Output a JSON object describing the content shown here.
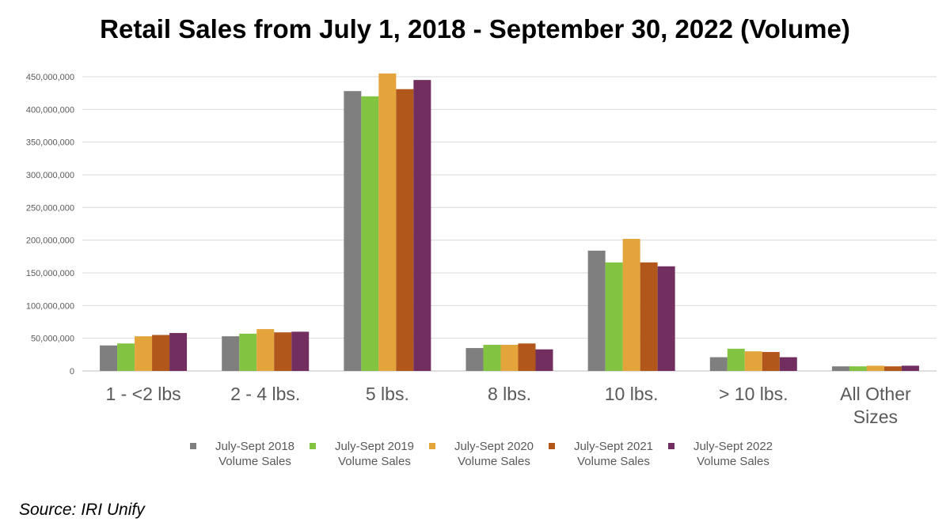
{
  "chart_data": {
    "type": "bar",
    "title": "Retail Sales from July 1, 2018 - September 30, 2022 (Volume)",
    "xlabel": "",
    "ylabel": "",
    "categories": [
      "1 - <2 lbs",
      "2 - 4 lbs.",
      "5 lbs.",
      "8 lbs.",
      "10 lbs.",
      "> 10 lbs.",
      "All Other Sizes"
    ],
    "y_ticks": [
      "0",
      "50,000,000",
      "100,000,000",
      "150,000,000",
      "200,000,000",
      "250,000,000",
      "300,000,000",
      "350,000,000",
      "400,000,000",
      "450,000,000"
    ],
    "ylim": [
      0,
      450000000
    ],
    "grid": true,
    "legend_position": "bottom",
    "series": [
      {
        "name": "July-Sept 2018 Volume Sales",
        "color": "#7f7f7f",
        "values": [
          39000000,
          53000000,
          428000000,
          35000000,
          184000000,
          21000000,
          7000000
        ]
      },
      {
        "name": "July-Sept 2019 Volume Sales",
        "color": "#82c341",
        "values": [
          42000000,
          57000000,
          420000000,
          40000000,
          166000000,
          34000000,
          7000000
        ]
      },
      {
        "name": "July-Sept 2020 Volume Sales",
        "color": "#e3a53b",
        "values": [
          53000000,
          64000000,
          455000000,
          40000000,
          202000000,
          30000000,
          8000000
        ]
      },
      {
        "name": "July-Sept 2021 Volume Sales",
        "color": "#b2571c",
        "values": [
          55000000,
          59000000,
          431000000,
          42000000,
          166000000,
          29000000,
          7000000
        ]
      },
      {
        "name": "July-Sept 2022 Volume Sales",
        "color": "#722e5f",
        "values": [
          58000000,
          60000000,
          445000000,
          33000000,
          160000000,
          21000000,
          8000000
        ]
      }
    ]
  },
  "source": "Source: IRI Unify"
}
